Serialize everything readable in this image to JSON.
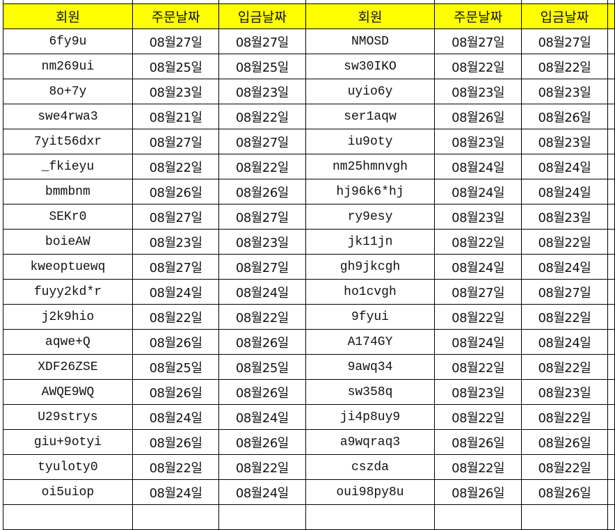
{
  "colors": {
    "header_bg": "#ffff00",
    "grid_line": "#000000"
  },
  "headers": [
    "회원",
    "주문날짜",
    "입금날짜",
    "회원",
    "주문날짜",
    "입금날짜"
  ],
  "rows": [
    [
      "6fy9u",
      "08월27일",
      "08월27일",
      "NMOSD",
      "08월27일",
      "08월27일"
    ],
    [
      "nm269ui",
      "08월25일",
      "08월25일",
      "sw30IKO",
      "08월22일",
      "08월22일"
    ],
    [
      "8o+7y",
      "08월23일",
      "08월23일",
      "uyio6y",
      "08월23일",
      "08월23일"
    ],
    [
      "swe4rwa3",
      "08월21일",
      "08월22일",
      "ser1aqw",
      "08월26일",
      "08월26일"
    ],
    [
      "7yit56dxr",
      "08월27일",
      "08월27일",
      "iu9oty",
      "08월23일",
      "08월23일"
    ],
    [
      "_fkieyu",
      "08월22일",
      "08월22일",
      "nm25hmnvgh",
      "08월24일",
      "08월24일"
    ],
    [
      "bmmbnm",
      "08월26일",
      "08월26일",
      "hj96k6*hj",
      "08월24일",
      "08월24일"
    ],
    [
      "SEKr0",
      "08월27일",
      "08월27일",
      "ry9esy",
      "08월23일",
      "08월23일"
    ],
    [
      "boieAW",
      "08월23일",
      "08월23일",
      "jk11jn",
      "08월22일",
      "08월22일"
    ],
    [
      "kweoptuewq",
      "08월27일",
      "08월27일",
      "gh9jkcgh",
      "08월24일",
      "08월24일"
    ],
    [
      "fuyy2kd*r",
      "08월24일",
      "08월24일",
      "ho1cvgh",
      "08월27일",
      "08월27일"
    ],
    [
      "j2k9hio",
      "08월22일",
      "08월22일",
      "9fyui",
      "08월22일",
      "08월22일"
    ],
    [
      "aqwe+Q",
      "08월26일",
      "08월26일",
      "A174GY",
      "08월24일",
      "08월24일"
    ],
    [
      "XDF26ZSE",
      "08월25일",
      "08월25일",
      "9awq34",
      "08월22일",
      "08월22일"
    ],
    [
      "AWQE9WQ",
      "08월26일",
      "08월26일",
      "sw358q",
      "08월23일",
      "08월23일"
    ],
    [
      "U29strys",
      "08월24일",
      "08월24일",
      "ji4p8uy9",
      "08월22일",
      "08월22일"
    ],
    [
      "giu+9otyi",
      "08월26일",
      "08월26일",
      "a9wqraq3",
      "08월26일",
      "08월26일"
    ],
    [
      "tyuloty0",
      "08월22일",
      "08월22일",
      "cszda",
      "08월22일",
      "08월22일"
    ],
    [
      "oi5uiop",
      "08월24일",
      "08월24일",
      "oui98py8u",
      "08월26일",
      "08월26일"
    ]
  ]
}
